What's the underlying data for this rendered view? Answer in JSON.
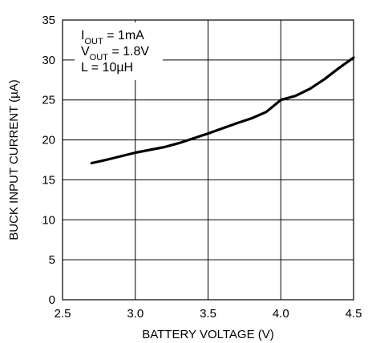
{
  "chart_data": {
    "type": "line",
    "title": "",
    "xlabel": "BATTERY VOLTAGE (V)",
    "ylabel": "BUCK INPUT CURRENT (µA)",
    "xlim": [
      2.5,
      4.5
    ],
    "ylim": [
      0,
      35
    ],
    "x_ticks": [
      "2.5",
      "3.0",
      "3.5",
      "4.0",
      "4.5"
    ],
    "y_ticks": [
      "0",
      "5",
      "10",
      "15",
      "20",
      "25",
      "30",
      "35"
    ],
    "grid": true,
    "annotations": [
      {
        "main": "I",
        "sub": "OUT",
        "rest": " = 1mA"
      },
      {
        "main": "V",
        "sub": "OUT",
        "rest": " = 1.8V"
      },
      {
        "main": "L = 10µH",
        "sub": "",
        "rest": ""
      }
    ],
    "series": [
      {
        "x": [
          2.7,
          2.8,
          2.9,
          3.0,
          3.1,
          3.2,
          3.3,
          3.4,
          3.5,
          3.6,
          3.7,
          3.8,
          3.9,
          4.0,
          4.1,
          4.2,
          4.3,
          4.4,
          4.5
        ],
        "y": [
          17.1,
          17.5,
          17.95,
          18.4,
          18.75,
          19.1,
          19.6,
          20.2,
          20.8,
          21.45,
          22.1,
          22.7,
          23.5,
          25.0,
          25.5,
          26.4,
          27.6,
          29.0,
          30.3
        ]
      }
    ]
  }
}
